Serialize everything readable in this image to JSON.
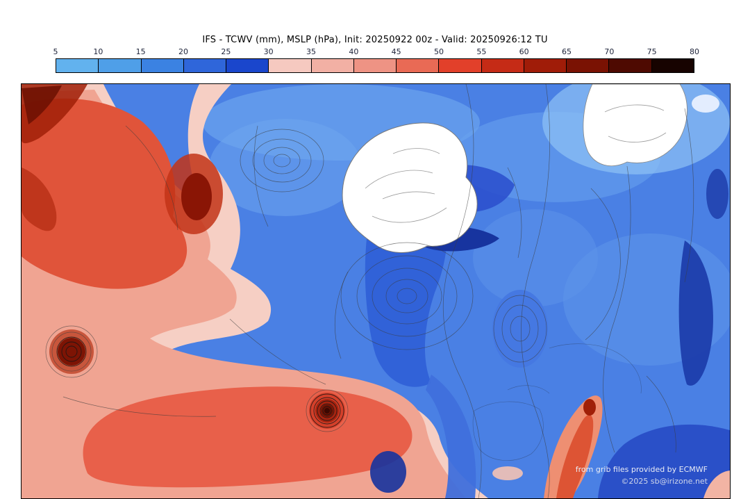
{
  "title": "IFS - TCWV (mm), MSLP (hPa), Init: 20250922 00z - Valid: 20250926:12 TU",
  "colorbar": {
    "ticks": [
      "5",
      "10",
      "15",
      "20",
      "25",
      "30",
      "35",
      "40",
      "45",
      "50",
      "55",
      "60",
      "65",
      "70",
      "75",
      "80"
    ],
    "colors": [
      "#62b2ee",
      "#4f9fe8",
      "#3b82e2",
      "#2f66da",
      "#1a46cc",
      "#f6c9c0",
      "#f2b0a4",
      "#ee9384",
      "#e96a55",
      "#e2402a",
      "#c52b16",
      "#a01c08",
      "#7a1203",
      "#4e0a01",
      "#170300"
    ]
  },
  "map": {
    "credit_line1": "from grib files provided by ECMWF",
    "credit_line2": "©2025 sb@irizone.net",
    "palette": {
      "ocean_blue": "#4a80e4",
      "deep_blue": "#1b3aa8",
      "pale_pink": "#f6cfc4",
      "salmon": "#f0a492",
      "red": "#e0543a",
      "dark_red": "#8a1505",
      "land_white": "#ffffff"
    }
  }
}
